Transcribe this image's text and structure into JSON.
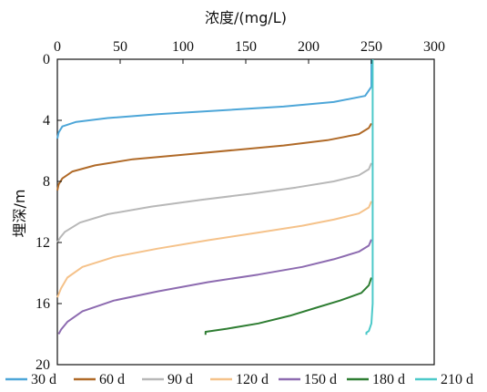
{
  "chart_data": {
    "type": "line",
    "title": "",
    "xlabel": "浓度/(mg/L)",
    "ylabel": "埋深/m",
    "xlim": [
      0,
      300
    ],
    "ylim": [
      0,
      20
    ],
    "y_inverted": true,
    "x_axis_position": "top",
    "x_ticks": [
      "0",
      "50",
      "100",
      "150",
      "200",
      "250",
      "300"
    ],
    "y_ticks": [
      "0",
      "4",
      "8",
      "12",
      "16",
      "20"
    ],
    "grid": false,
    "legend_position": "bottom",
    "series": [
      {
        "name": "30 d",
        "color": "#4da6d8",
        "points": [
          [
            250,
            0
          ],
          [
            250,
            1.8
          ],
          [
            245,
            2.4
          ],
          [
            220,
            2.8
          ],
          [
            180,
            3.1
          ],
          [
            130,
            3.35
          ],
          [
            80,
            3.6
          ],
          [
            40,
            3.85
          ],
          [
            15,
            4.1
          ],
          [
            4,
            4.4
          ],
          [
            1,
            4.8
          ],
          [
            0,
            5.2
          ]
        ]
      },
      {
        "name": "60 d",
        "color": "#b06a28",
        "points": [
          [
            250,
            4.2
          ],
          [
            248,
            4.5
          ],
          [
            240,
            4.9
          ],
          [
            215,
            5.3
          ],
          [
            180,
            5.65
          ],
          [
            140,
            5.95
          ],
          [
            100,
            6.25
          ],
          [
            60,
            6.55
          ],
          [
            30,
            6.95
          ],
          [
            12,
            7.35
          ],
          [
            4,
            7.8
          ],
          [
            1,
            8.2
          ],
          [
            0,
            8.6
          ]
        ]
      },
      {
        "name": "90 d",
        "color": "#b8b8b8",
        "points": [
          [
            250,
            6.8
          ],
          [
            248,
            7.2
          ],
          [
            240,
            7.6
          ],
          [
            220,
            8.0
          ],
          [
            190,
            8.4
          ],
          [
            155,
            8.8
          ],
          [
            115,
            9.2
          ],
          [
            75,
            9.65
          ],
          [
            40,
            10.15
          ],
          [
            18,
            10.7
          ],
          [
            6,
            11.3
          ],
          [
            2,
            11.7
          ],
          [
            0,
            12.0
          ]
        ]
      },
      {
        "name": "120 d",
        "color": "#f5c28a",
        "points": [
          [
            250,
            9.3
          ],
          [
            248,
            9.7
          ],
          [
            240,
            10.1
          ],
          [
            220,
            10.5
          ],
          [
            195,
            10.9
          ],
          [
            160,
            11.35
          ],
          [
            120,
            11.85
          ],
          [
            80,
            12.4
          ],
          [
            45,
            12.95
          ],
          [
            20,
            13.6
          ],
          [
            8,
            14.3
          ],
          [
            3,
            15.0
          ],
          [
            0,
            15.6
          ]
        ]
      },
      {
        "name": "150 d",
        "color": "#8d6bb0",
        "points": [
          [
            250,
            11.8
          ],
          [
            248,
            12.2
          ],
          [
            240,
            12.6
          ],
          [
            220,
            13.1
          ],
          [
            195,
            13.6
          ],
          [
            160,
            14.1
          ],
          [
            120,
            14.6
          ],
          [
            80,
            15.2
          ],
          [
            45,
            15.8
          ],
          [
            20,
            16.5
          ],
          [
            8,
            17.2
          ],
          [
            3,
            17.7
          ],
          [
            1,
            18.0
          ]
        ]
      },
      {
        "name": "180 d",
        "color": "#2e7d32",
        "points": [
          [
            250,
            14.3
          ],
          [
            248,
            14.8
          ],
          [
            242,
            15.3
          ],
          [
            225,
            15.8
          ],
          [
            205,
            16.3
          ],
          [
            185,
            16.8
          ],
          [
            160,
            17.3
          ],
          [
            135,
            17.65
          ],
          [
            118,
            17.85
          ],
          [
            118,
            18.05
          ]
        ]
      },
      {
        "name": "210 d",
        "color": "#4cc9c9",
        "points": [
          [
            251,
            0
          ],
          [
            251,
            6
          ],
          [
            251,
            12
          ],
          [
            251,
            16
          ],
          [
            250,
            17.3
          ],
          [
            248,
            17.8
          ],
          [
            246,
            17.9
          ],
          [
            246,
            18.05
          ]
        ]
      }
    ]
  }
}
